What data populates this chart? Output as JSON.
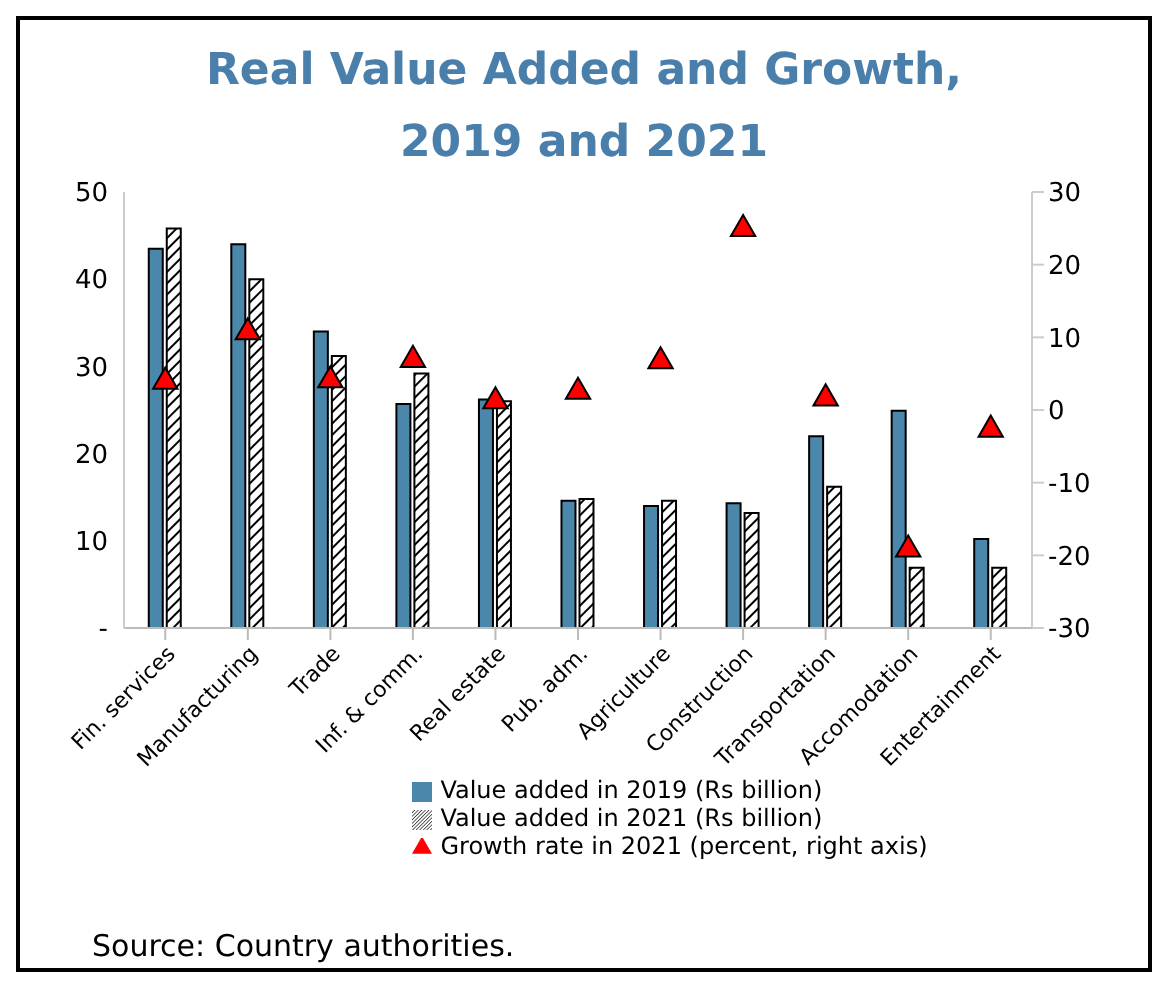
{
  "chart_data": {
    "type": "bar",
    "title": "Real Value Added and Growth, 2019 and 2021",
    "categories": [
      "Fin. services",
      "Manufacturing",
      "Trade",
      "Inf. & comm.",
      "Real estate",
      "Pub. adm.",
      "Agriculture",
      "Construction",
      "Transportation",
      "Accomodation",
      "Entertainment"
    ],
    "series": [
      {
        "name": "Value added in 2019 (Rs billion)",
        "color": "#4a87aa",
        "values": [
          43.5,
          44,
          34,
          25.7,
          26.2,
          14.6,
          14,
          14.3,
          22,
          24.9,
          10.2
        ]
      },
      {
        "name": "Value added in 2021 (Rs billion)",
        "color": "#000000",
        "values": [
          45.8,
          40,
          31.2,
          29.2,
          26,
          14.8,
          14.6,
          13.2,
          16.2,
          6.9,
          6.9
        ]
      },
      {
        "name": "Growth rate in 2021 (percent, right axis)",
        "type": "scatter",
        "axis": "y2",
        "marker": "triangle",
        "color": "#ff0000",
        "values": [
          3.9,
          10.7,
          4.1,
          6.9,
          1.2,
          2.5,
          6.7,
          24.9,
          1.6,
          -19.2,
          -2.7
        ]
      }
    ],
    "ylim": [
      0,
      50
    ],
    "yticks": [
      {
        "value": 0,
        "label": "-"
      },
      10,
      20,
      30,
      40,
      50
    ],
    "y2lim": [
      -30,
      30
    ],
    "y2ticks": [
      -30,
      -20,
      -10,
      0,
      10,
      20,
      30
    ],
    "grid": false,
    "legend": "bottom",
    "annotations": [
      "Source: Country authorities."
    ]
  }
}
